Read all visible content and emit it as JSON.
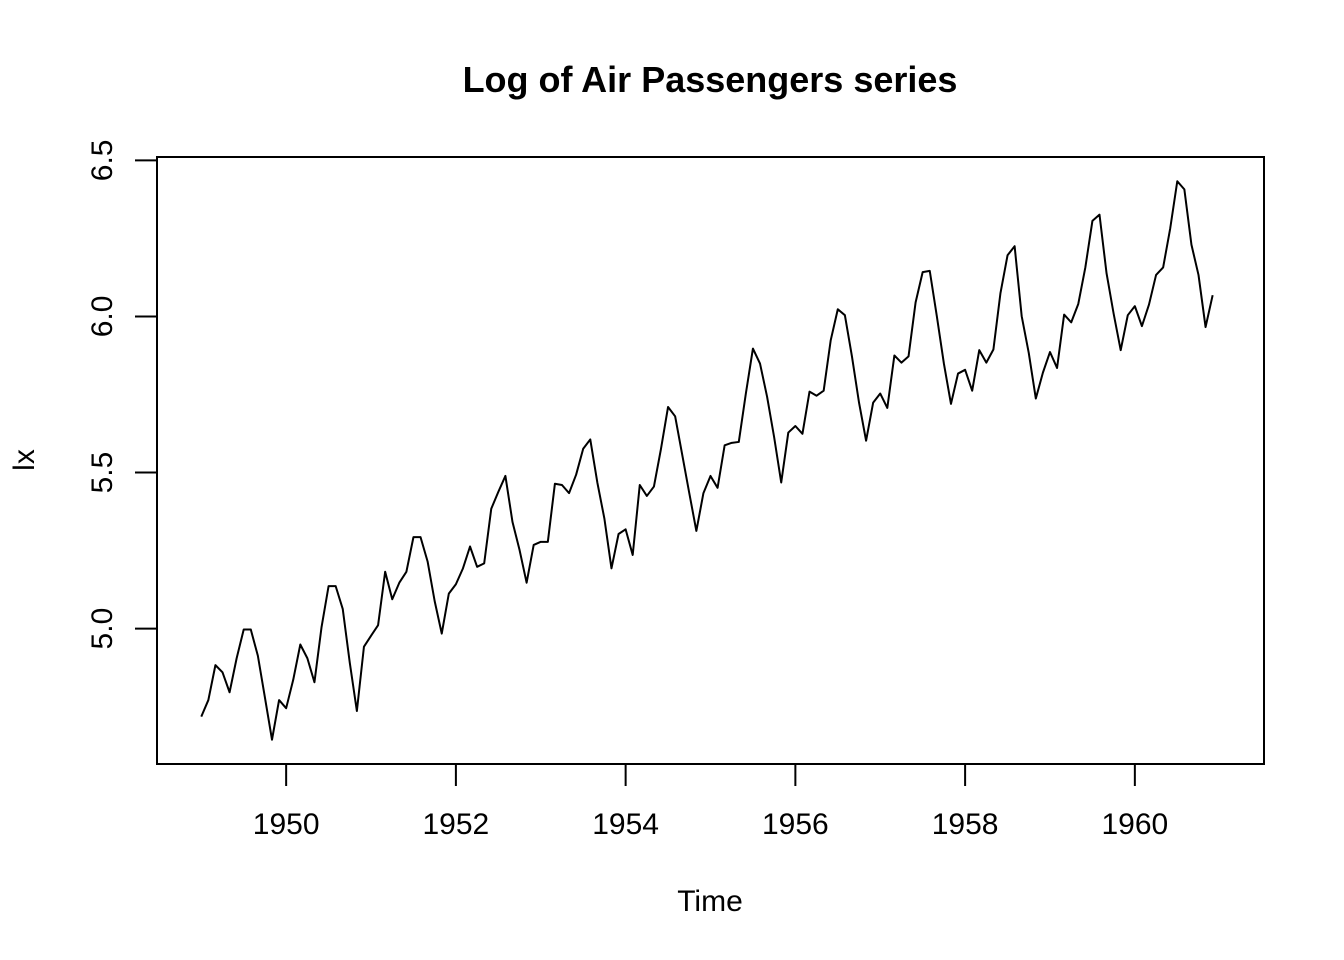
{
  "chart_data": {
    "type": "line",
    "title": "Log of Air Passengers series",
    "xlabel": "Time",
    "ylabel": "lx",
    "xlim": [
      1949,
      1961
    ],
    "ylim": [
      4.644,
      6.433
    ],
    "x_ticks": [
      1950,
      1952,
      1954,
      1956,
      1958,
      1960
    ],
    "x_tick_labels": [
      "1950",
      "1952",
      "1954",
      "1956",
      "1958",
      "1960"
    ],
    "y_ticks": [
      5.0,
      5.5,
      6.0,
      6.5
    ],
    "y_tick_labels": [
      "5.0",
      "5.5",
      "6.0",
      "6.5"
    ],
    "grid": false,
    "legend": "none",
    "series": [
      {
        "x_start": 1949,
        "x_step": 0.0833333333,
        "values": [
          4.718,
          4.771,
          4.883,
          4.86,
          4.796,
          4.905,
          4.997,
          4.997,
          4.913,
          4.779,
          4.644,
          4.771,
          4.745,
          4.836,
          4.949,
          4.905,
          4.828,
          5.004,
          5.136,
          5.136,
          5.063,
          4.89,
          4.736,
          4.942,
          4.977,
          5.011,
          5.182,
          5.094,
          5.147,
          5.182,
          5.293,
          5.293,
          5.215,
          5.088,
          4.984,
          5.112,
          5.142,
          5.193,
          5.263,
          5.198,
          5.209,
          5.384,
          5.438,
          5.489,
          5.342,
          5.252,
          5.147,
          5.268,
          5.278,
          5.278,
          5.464,
          5.46,
          5.434,
          5.493,
          5.576,
          5.606,
          5.468,
          5.352,
          5.193,
          5.303,
          5.318,
          5.236,
          5.46,
          5.425,
          5.455,
          5.576,
          5.71,
          5.68,
          5.557,
          5.434,
          5.313,
          5.434,
          5.489,
          5.451,
          5.587,
          5.595,
          5.598,
          5.753,
          5.897,
          5.849,
          5.743,
          5.613,
          5.468,
          5.628,
          5.649,
          5.624,
          5.759,
          5.746,
          5.762,
          5.924,
          6.023,
          6.004,
          5.872,
          5.724,
          5.602,
          5.724,
          5.753,
          5.707,
          5.875,
          5.852,
          5.872,
          6.045,
          6.142,
          6.146,
          6.001,
          5.849,
          5.72,
          5.817,
          5.829,
          5.762,
          5.892,
          5.852,
          5.894,
          6.075,
          6.196,
          6.225,
          6.001,
          5.883,
          5.737,
          5.82,
          5.886,
          5.835,
          6.006,
          5.981,
          6.04,
          6.157,
          6.306,
          6.326,
          6.138,
          6.009,
          5.892,
          6.004,
          6.033,
          5.969,
          6.038,
          6.133,
          6.157,
          6.282,
          6.433,
          6.407,
          6.23,
          6.133,
          5.966,
          6.068
        ]
      }
    ]
  }
}
